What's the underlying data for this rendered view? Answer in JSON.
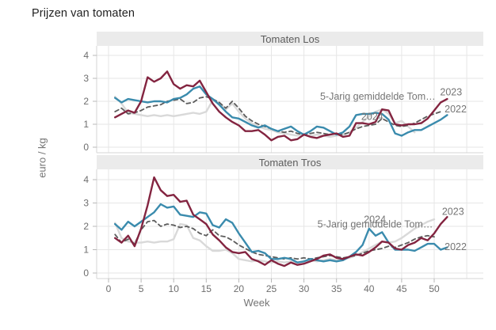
{
  "page": {
    "title": "Prijzen van tomaten"
  },
  "axes": {
    "x_label": "Week",
    "y_label": "euro / kg",
    "x_ticks": [
      0,
      5,
      10,
      15,
      20,
      25,
      30,
      35,
      40,
      45,
      50
    ],
    "x_grid": [
      0,
      5,
      10,
      15,
      20,
      25,
      30,
      35,
      40,
      45,
      50,
      55
    ],
    "y_ticks": [
      0,
      1,
      2,
      3,
      4
    ]
  },
  "colors": {
    "series_2023": "#832440",
    "series_2022": "#3a8bad",
    "series_2024": "#5c5c5c",
    "series_avg": "#d9d9d9",
    "grid": "#e6e6e6",
    "axis_line": "#d4d4d4",
    "tick_text": "#6e6e6e",
    "annotation_text": "#757575",
    "panel_header_bg": "#ebebeb"
  },
  "chart_data": [
    {
      "type": "line",
      "title": "Tomaten Los",
      "xlabel": "Week",
      "ylabel": "euro / kg",
      "x_start_week": 1,
      "ylim": [
        0,
        4.4
      ],
      "xlim": [
        -2,
        57.5
      ],
      "grid": true,
      "series": [
        {
          "name": "5-Jarig gemiddelde Tomaten",
          "style": "solid",
          "color_key": "series_avg",
          "values": [
            2.2,
            1.9,
            1.5,
            1.45,
            1.4,
            1.35,
            1.4,
            1.35,
            1.4,
            1.35,
            1.4,
            1.45,
            1.5,
            1.45,
            1.55,
            2.05,
            1.95,
            1.65,
            1.9,
            1.55,
            1.25,
            1.05,
            0.9,
            0.8,
            0.75,
            0.65,
            0.6,
            0.55,
            0.5,
            0.55,
            0.5,
            0.55,
            0.5,
            0.45,
            0.5,
            0.55,
            0.65,
            0.85,
            1.1,
            1.35,
            1.55,
            1.65,
            1.45,
            1.05,
            1.15,
            0.9,
            0.65
          ]
        },
        {
          "name": "2024",
          "style": "dashed",
          "color_key": "series_2024",
          "values": [
            1.55,
            1.7,
            1.45,
            1.5,
            1.6,
            1.75,
            1.8,
            1.85,
            2.0,
            2.05,
            2.1,
            1.9,
            1.95,
            2.15,
            2.2,
            2.1,
            1.95,
            1.7,
            2.0,
            1.7,
            1.35,
            1.15,
            1.0,
            0.9,
            0.8,
            0.7,
            0.65,
            0.7,
            0.6,
            0.55,
            0.6,
            0.65,
            0.6,
            0.55,
            0.6,
            0.55,
            0.65,
            0.8,
            0.9,
            0.95,
            1.0,
            1.25,
            1.1,
            0.95,
            0.9,
            0.95,
            1.05,
            1.2,
            1.35,
            1.45,
            1.55
          ]
        },
        {
          "name": "2022",
          "style": "solid",
          "color_key": "series_2022",
          "values": [
            2.15,
            1.95,
            2.1,
            2.05,
            2.0,
            1.95,
            2.0,
            2.0,
            1.95,
            2.1,
            2.15,
            2.3,
            2.55,
            2.65,
            2.3,
            2.1,
            1.85,
            1.55,
            1.3,
            1.25,
            1.1,
            0.95,
            0.85,
            0.95,
            0.8,
            0.7,
            0.8,
            0.9,
            0.7,
            0.55,
            0.7,
            0.9,
            0.85,
            0.7,
            0.55,
            0.65,
            0.9,
            1.4,
            1.45,
            1.45,
            1.5,
            1.45,
            1.2,
            0.6,
            0.5,
            0.65,
            0.75,
            0.75,
            0.9,
            1.05,
            1.2,
            1.4
          ]
        },
        {
          "name": "2023",
          "style": "solid",
          "color_key": "series_2023",
          "values": [
            1.3,
            1.45,
            1.6,
            1.5,
            2.0,
            3.05,
            2.85,
            3.0,
            3.3,
            2.75,
            2.55,
            2.7,
            2.65,
            2.9,
            2.4,
            1.9,
            1.55,
            1.3,
            1.1,
            0.95,
            0.7,
            0.7,
            0.75,
            0.55,
            0.3,
            0.45,
            0.5,
            0.3,
            0.35,
            0.55,
            0.45,
            0.4,
            0.5,
            0.55,
            0.6,
            0.45,
            0.5,
            1.05,
            1.05,
            1.0,
            1.1,
            1.65,
            1.6,
            1.0,
            0.95,
            1.0,
            1.0,
            1.05,
            1.25,
            1.6,
            1.95,
            2.1
          ]
        }
      ],
      "annotations": [
        {
          "text": "5-Jarig gemiddelde Tom…",
          "week": 50.2,
          "value": 2.2,
          "anchor": "end"
        },
        {
          "text": "2023",
          "week": 50.9,
          "value": 2.4,
          "anchor": "start"
        },
        {
          "text": "2024",
          "week": 38.8,
          "value": 1.32,
          "anchor": "start"
        },
        {
          "text": "2022",
          "week": 51.6,
          "value": 1.65,
          "anchor": "start"
        }
      ]
    },
    {
      "type": "line",
      "title": "Tomaten Tros",
      "xlabel": "Week",
      "ylabel": "euro / kg",
      "x_start_week": 1,
      "ylim": [
        0,
        4.4
      ],
      "xlim": [
        -2,
        57.5
      ],
      "grid": true,
      "series": [
        {
          "name": "5-Jarig gemiddelde Tomaten",
          "style": "solid",
          "color_key": "series_avg",
          "values": [
            2.15,
            1.5,
            1.35,
            1.3,
            1.3,
            1.35,
            1.3,
            1.35,
            1.35,
            1.45,
            2.1,
            2.05,
            1.5,
            1.4,
            1.15,
            0.95,
            0.95,
            1.0,
            0.85,
            0.6,
            0.55,
            0.5,
            0.55,
            0.5,
            0.45,
            0.5,
            0.45,
            0.5,
            0.45,
            0.5,
            0.55,
            0.5,
            0.55,
            0.6,
            0.55,
            0.6,
            0.65,
            0.75,
            0.9,
            1.05,
            1.2,
            1.35,
            1.3,
            1.35,
            1.5,
            1.7,
            1.9,
            2.05,
            2.2,
            2.3
          ]
        },
        {
          "name": "2024",
          "style": "dashed",
          "color_key": "series_2024",
          "values": [
            1.65,
            1.3,
            1.45,
            1.25,
            1.85,
            2.2,
            2.25,
            2.0,
            2.1,
            2.05,
            1.95,
            2.0,
            1.9,
            1.7,
            1.6,
            1.85,
            1.6,
            1.55,
            1.4,
            1.2,
            1.05,
            0.9,
            0.8,
            0.75,
            0.7,
            0.65,
            0.6,
            0.65,
            0.6,
            0.65,
            0.6,
            0.65,
            0.7,
            0.75,
            0.7,
            0.65,
            0.7,
            0.75,
            0.85,
            0.95,
            1.0,
            1.05,
            1.15,
            1.1,
            1.2,
            1.3,
            1.45,
            1.55,
            1.6,
            1.55
          ]
        },
        {
          "name": "2022",
          "style": "solid",
          "color_key": "series_2022",
          "values": [
            2.1,
            1.85,
            2.2,
            2.0,
            2.2,
            2.4,
            2.6,
            2.95,
            2.8,
            2.85,
            2.5,
            2.45,
            2.4,
            2.6,
            2.55,
            2.05,
            1.95,
            2.3,
            2.15,
            1.7,
            1.3,
            0.9,
            0.95,
            0.85,
            0.6,
            0.6,
            0.65,
            0.6,
            0.45,
            0.5,
            0.6,
            0.55,
            0.5,
            0.55,
            0.5,
            0.55,
            0.7,
            0.9,
            1.2,
            1.9,
            1.6,
            1.75,
            1.3,
            1.0,
            1.0,
            1.0,
            0.95,
            1.1,
            1.25,
            1.25,
            1.0,
            1.1
          ]
        },
        {
          "name": "2023",
          "style": "solid",
          "color_key": "series_2023",
          "values": [
            1.5,
            1.3,
            1.6,
            1.15,
            1.9,
            2.9,
            4.1,
            3.55,
            3.3,
            3.35,
            3.05,
            3.1,
            2.5,
            2.3,
            2.1,
            1.65,
            1.4,
            1.1,
            0.9,
            0.85,
            0.9,
            0.6,
            0.5,
            0.35,
            0.55,
            0.4,
            0.3,
            0.45,
            0.35,
            0.4,
            0.5,
            0.6,
            0.75,
            0.8,
            0.65,
            0.6,
            0.7,
            0.8,
            0.75,
            0.9,
            1.1,
            1.35,
            1.3,
            1.05,
            1.0,
            1.2,
            1.3,
            1.5,
            1.4,
            1.7,
            2.1,
            2.4
          ]
        }
      ],
      "annotations": [
        {
          "text": "2023",
          "week": 51.2,
          "value": 2.62,
          "anchor": "start"
        },
        {
          "text": "5-Jarig gemiddelde Tom…",
          "week": 49.8,
          "value": 2.08,
          "anchor": "end"
        },
        {
          "text": "2024",
          "week": 39.2,
          "value": 2.28,
          "anchor": "start"
        },
        {
          "text": "2022",
          "week": 51.6,
          "value": 1.12,
          "anchor": "start"
        }
      ]
    }
  ]
}
